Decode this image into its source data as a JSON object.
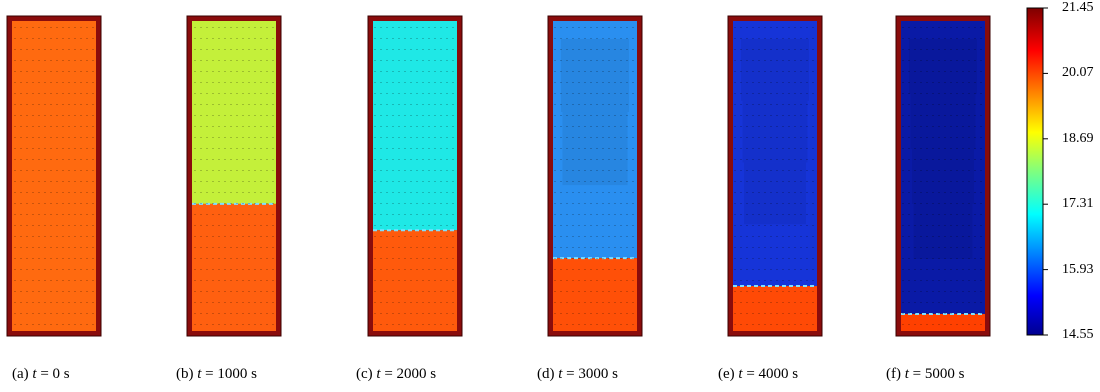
{
  "panels": [
    {
      "letter": "(a)",
      "var": "t",
      "eq": " = ",
      "time": "0",
      "unit": " s",
      "front": 1.0,
      "top_color": "#ff6a10",
      "bottom_color": "#ff6a10"
    },
    {
      "letter": "(b)",
      "var": "t",
      "eq": " = ",
      "time": "1000",
      "unit": " s",
      "front": 0.59,
      "top_color": "#c4f03a",
      "bottom_color": "#ff6010"
    },
    {
      "letter": "(c)",
      "var": "t",
      "eq": " = ",
      "time": "2000",
      "unit": " s",
      "front": 0.675,
      "top_color": "#1fe8e6",
      "bottom_color": "#ff5a0c"
    },
    {
      "letter": "(d)",
      "var": "t",
      "eq": " = ",
      "time": "3000",
      "unit": " s",
      "front": 0.765,
      "top_color": "#2a8ff0",
      "bottom_color": "#ff5008"
    },
    {
      "letter": "(e)",
      "var": "t",
      "eq": " = ",
      "time": "4000",
      "unit": " s",
      "front": 0.855,
      "top_color": "#1634d8",
      "bottom_color": "#ff4a06"
    },
    {
      "letter": "(f)",
      "var": "t",
      "eq": " = ",
      "time": "5000",
      "unit": " s",
      "front": 0.945,
      "top_color": "#0a1aa6",
      "bottom_color": "#ff4000"
    }
  ],
  "colorbar": {
    "ticks": [
      "21.45",
      "20.07",
      "18.69",
      "17.31",
      "15.93",
      "14.55"
    ],
    "min": 14.55,
    "max": 21.45
  }
}
